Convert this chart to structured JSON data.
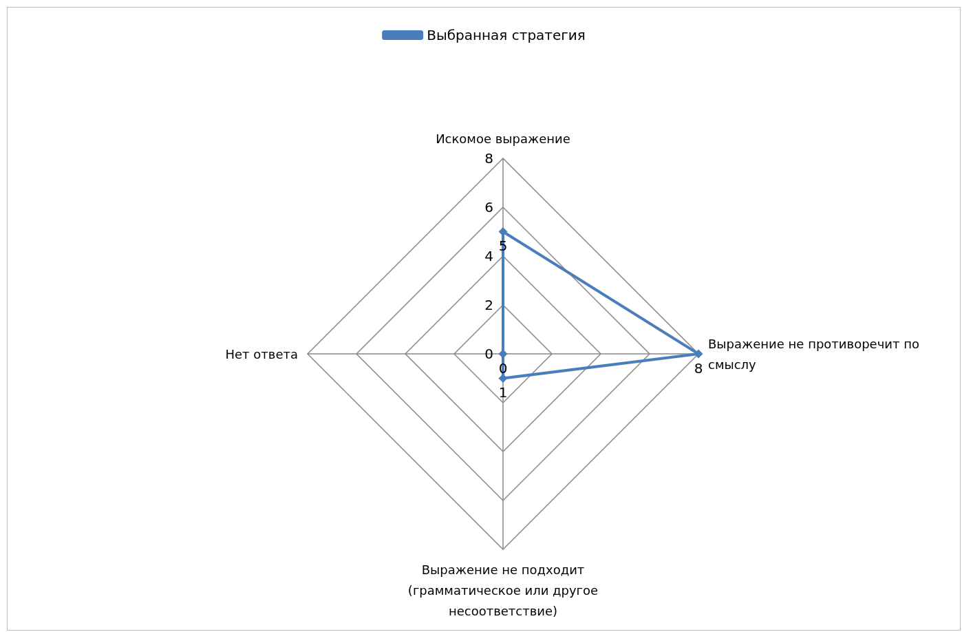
{
  "chart_data": {
    "type": "radar",
    "categories": [
      "Искомое выражение",
      "Выражение не противоречит по смыслу",
      "Выражение не подходит (грамматическое или другое несоответствие)",
      "Нет ответа"
    ],
    "series": [
      {
        "name": "Выбранная стратегия",
        "color": "#4a7ebb",
        "values": [
          5,
          8,
          1,
          0
        ]
      }
    ],
    "ylim": [
      0,
      8
    ],
    "yticks": [
      0,
      2,
      4,
      6,
      8
    ],
    "data_labels": true,
    "legend": "top",
    "marker": "diamond",
    "grid": true
  }
}
